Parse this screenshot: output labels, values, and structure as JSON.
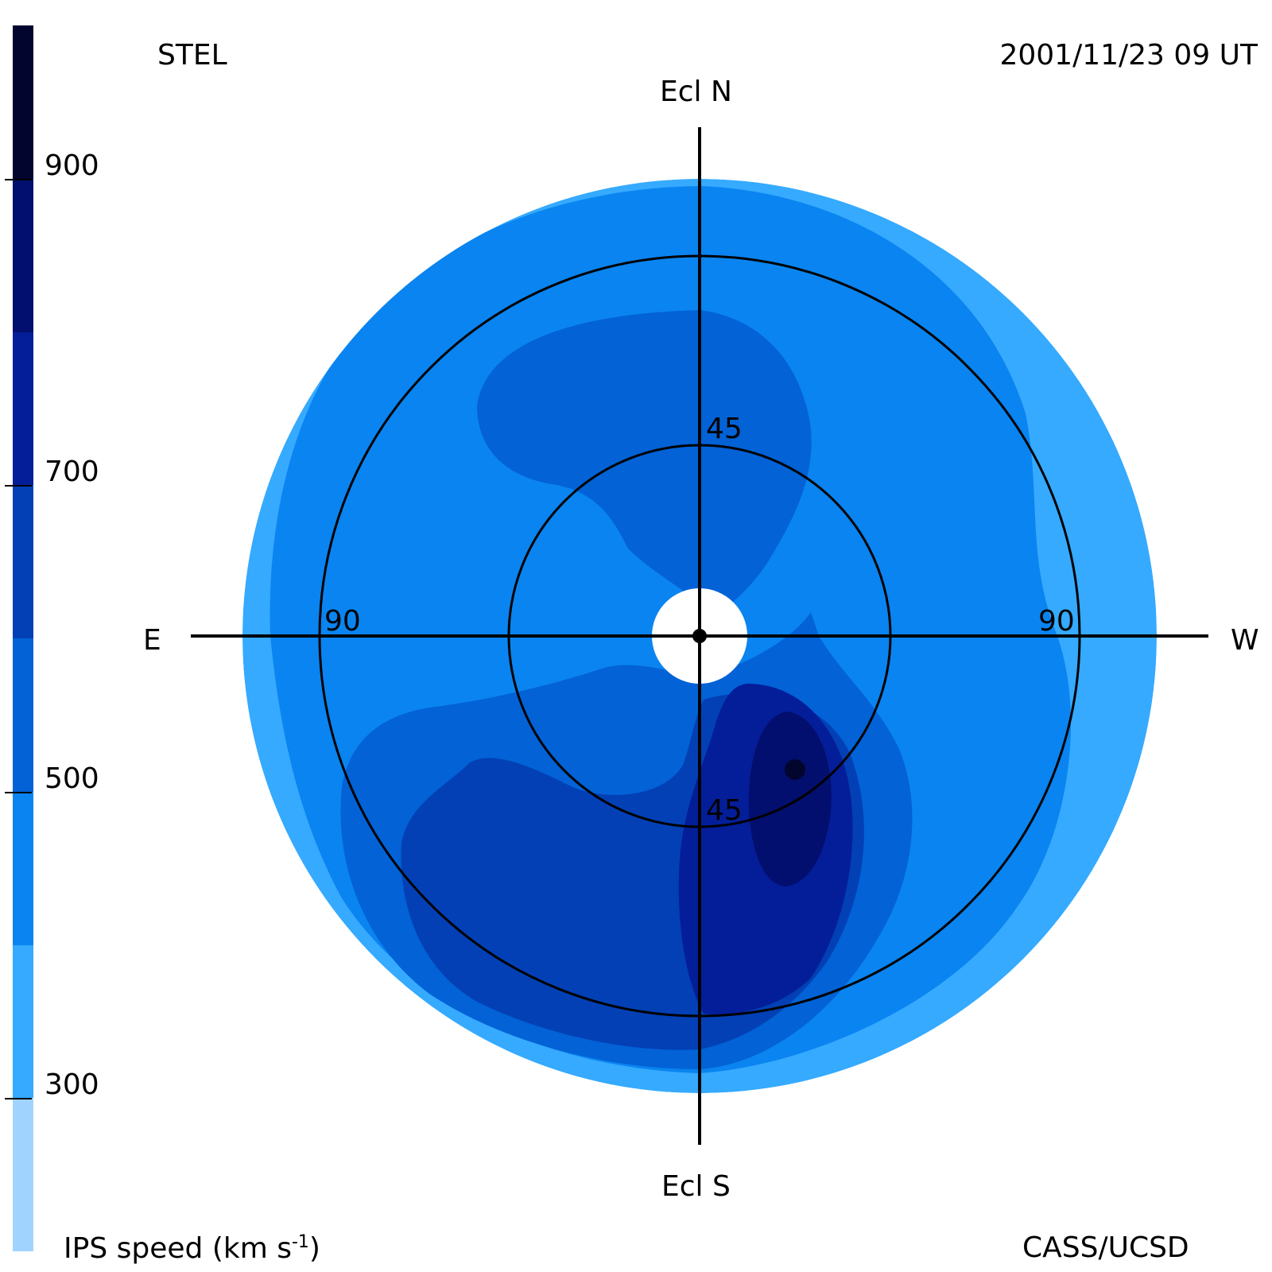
{
  "header": {
    "station": "STEL",
    "timestamp": "2001/11/23 09 UT"
  },
  "footer": {
    "colorbar_title": "IPS speed (km s",
    "colorbar_title_sup": "-1",
    "colorbar_title_end": ")",
    "credit": "CASS/UCSD"
  },
  "compass": {
    "north": "Ecl N",
    "south": "Ecl S",
    "east": "E",
    "west": "W"
  },
  "rings": {
    "inner_top": "45",
    "inner_bottom": "45",
    "outer_left": "90",
    "outer_right": "90"
  },
  "colorbar": {
    "min": 200,
    "max": 1000,
    "ticks": [
      "300",
      "500",
      "700",
      "900"
    ],
    "levels": [
      {
        "from": 200,
        "to": 300,
        "color": "#a0d4ff"
      },
      {
        "from": 300,
        "to": 400,
        "color": "#35aaff"
      },
      {
        "from": 400,
        "to": 500,
        "color": "#0a84f0"
      },
      {
        "from": 500,
        "to": 600,
        "color": "#0262d6"
      },
      {
        "from": 600,
        "to": 700,
        "color": "#0340b5"
      },
      {
        "from": 700,
        "to": 800,
        "color": "#041e99"
      },
      {
        "from": 800,
        "to": 900,
        "color": "#030f6e"
      },
      {
        "from": 900,
        "to": 1000,
        "color": "#02052e"
      }
    ]
  },
  "colors": {
    "v300": "#35aaff",
    "v400": "#0a84f0",
    "v500": "#0262d6",
    "v600": "#0340b5",
    "v700": "#041e99",
    "v800": "#030f6e",
    "v900": "#02052e"
  }
}
